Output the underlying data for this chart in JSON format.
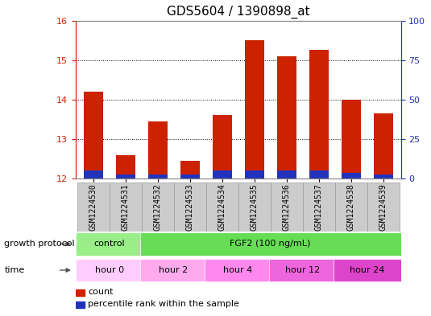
{
  "title": "GDS5604 / 1390898_at",
  "samples": [
    "GSM1224530",
    "GSM1224531",
    "GSM1224532",
    "GSM1224533",
    "GSM1224534",
    "GSM1224535",
    "GSM1224536",
    "GSM1224537",
    "GSM1224538",
    "GSM1224539"
  ],
  "red_values": [
    14.2,
    12.6,
    13.45,
    12.45,
    13.6,
    15.5,
    15.1,
    15.25,
    14.0,
    13.65
  ],
  "blue_values": [
    12.2,
    12.1,
    12.1,
    12.1,
    12.2,
    12.2,
    12.2,
    12.2,
    12.15,
    12.1
  ],
  "ylim": [
    12,
    16
  ],
  "yticks_left": [
    12,
    13,
    14,
    15,
    16
  ],
  "yticks_right": [
    0,
    25,
    50,
    75,
    100
  ],
  "bar_bottom": 12,
  "bar_width": 0.6,
  "red_color": "#cc2200",
  "blue_color": "#2233bb",
  "bg_color": "#ffffff",
  "growth_protocol_label": "growth protocol",
  "time_label": "time",
  "protocol_groups": [
    {
      "label": "control",
      "start": 0,
      "end": 2,
      "color": "#99ee88"
    },
    {
      "label": "FGF2 (100 ng/mL)",
      "start": 2,
      "end": 10,
      "color": "#66dd55"
    }
  ],
  "time_colors": [
    "#ffccff",
    "#ffaaee",
    "#ff88ee",
    "#ee66dd",
    "#dd44cc"
  ],
  "time_groups": [
    {
      "label": "hour 0",
      "start": 0,
      "end": 2
    },
    {
      "label": "hour 2",
      "start": 2,
      "end": 4
    },
    {
      "label": "hour 4",
      "start": 4,
      "end": 6
    },
    {
      "label": "hour 12",
      "start": 6,
      "end": 8
    },
    {
      "label": "hour 24",
      "start": 8,
      "end": 10
    }
  ],
  "legend_count_label": "count",
  "legend_percentile_label": "percentile rank within the sample",
  "left_axis_color": "#cc2200",
  "right_axis_color": "#2233bb",
  "title_fontsize": 11,
  "tick_fontsize": 7,
  "annotation_fontsize": 8,
  "legend_fontsize": 8,
  "xtick_bg": "#cccccc",
  "xtick_border": "#999999"
}
